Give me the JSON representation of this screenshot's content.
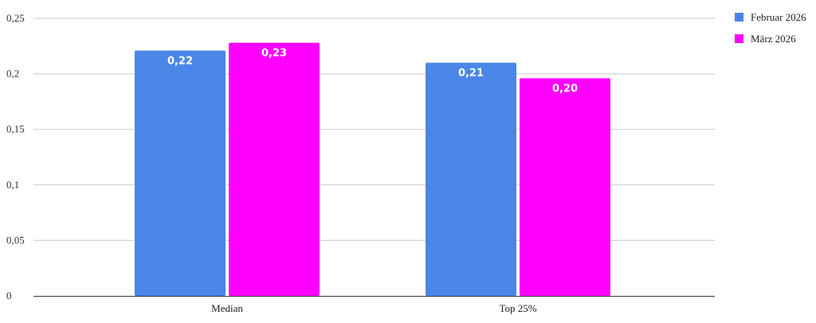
{
  "chart_data": {
    "type": "bar",
    "categories": [
      "Median",
      "Top 25%"
    ],
    "series": [
      {
        "name": "Februar 2026",
        "color": "#4a86e8",
        "values": [
          0.221,
          0.21
        ],
        "labels": [
          "0,22",
          "0,21"
        ]
      },
      {
        "name": "März 2026",
        "color": "#ff00ff",
        "values": [
          0.228,
          0.196
        ],
        "labels": [
          "0,23",
          "0,20"
        ]
      }
    ],
    "y_ticks": [
      {
        "value": 0,
        "label": "0"
      },
      {
        "value": 0.05,
        "label": "0,05"
      },
      {
        "value": 0.1,
        "label": "0,1"
      },
      {
        "value": 0.15,
        "label": "0,15"
      },
      {
        "value": 0.2,
        "label": "0,2"
      },
      {
        "value": 0.25,
        "label": "0,25"
      }
    ],
    "ylim": [
      0,
      0.25
    ],
    "grid": true,
    "legend_position": "top-right",
    "title": "",
    "xlabel": "",
    "ylabel": ""
  }
}
